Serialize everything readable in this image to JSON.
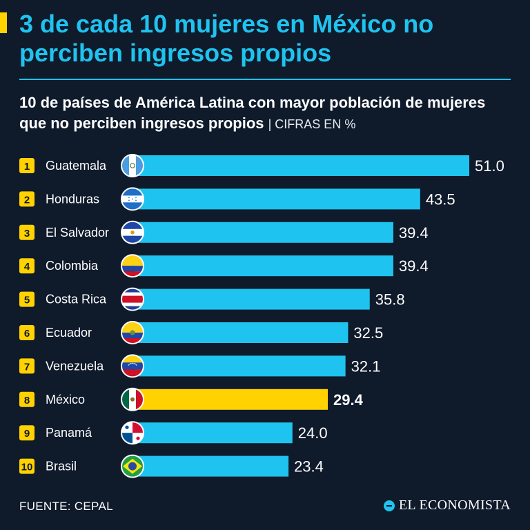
{
  "header": {
    "title": "3 de cada 10 mujeres en México no perciben ingresos propios",
    "subtitle": "10 de países de América Latina con mayor población de mujeres que no perciben ingresos propios",
    "unit": "| CIFRAS EN %"
  },
  "footer": {
    "source": "FUENTE: CEPAL",
    "brand": "EL ECONOMISTA"
  },
  "colors": {
    "background": "#0f1a2b",
    "bar": "#1fc3ef",
    "highlight_bar": "#ffd200",
    "rank_badge": "#ffd200"
  },
  "chart_data": {
    "type": "bar",
    "orientation": "horizontal",
    "title": "10 de países de América Latina con mayor población de mujeres que no perciben ingresos propios",
    "unit": "CIFRAS EN %",
    "ranks": [
      "1",
      "2",
      "3",
      "4",
      "5",
      "6",
      "7",
      "8",
      "9",
      "10"
    ],
    "categories": [
      "Guatemala",
      "Honduras",
      "El Salvador",
      "Colombia",
      "Costa Rica",
      "Ecuador",
      "Venezuela",
      "México",
      "Panamá",
      "Brasil"
    ],
    "values": [
      51.0,
      43.5,
      39.4,
      39.4,
      35.8,
      32.5,
      32.1,
      29.4,
      24.0,
      23.4
    ],
    "value_labels": [
      "51.0",
      "43.5",
      "39.4",
      "39.4",
      "35.8",
      "32.5",
      "32.1",
      "29.4",
      "24.0",
      "23.4"
    ],
    "highlight": "México",
    "flags": [
      "guatemala-flag-icon",
      "honduras-flag-icon",
      "el-salvador-flag-icon",
      "colombia-flag-icon",
      "costa-rica-flag-icon",
      "ecuador-flag-icon",
      "venezuela-flag-icon",
      "mexico-flag-icon",
      "panama-flag-icon",
      "brasil-flag-icon"
    ],
    "xlim": [
      0,
      51.0
    ],
    "grid": false,
    "legend": "none"
  }
}
